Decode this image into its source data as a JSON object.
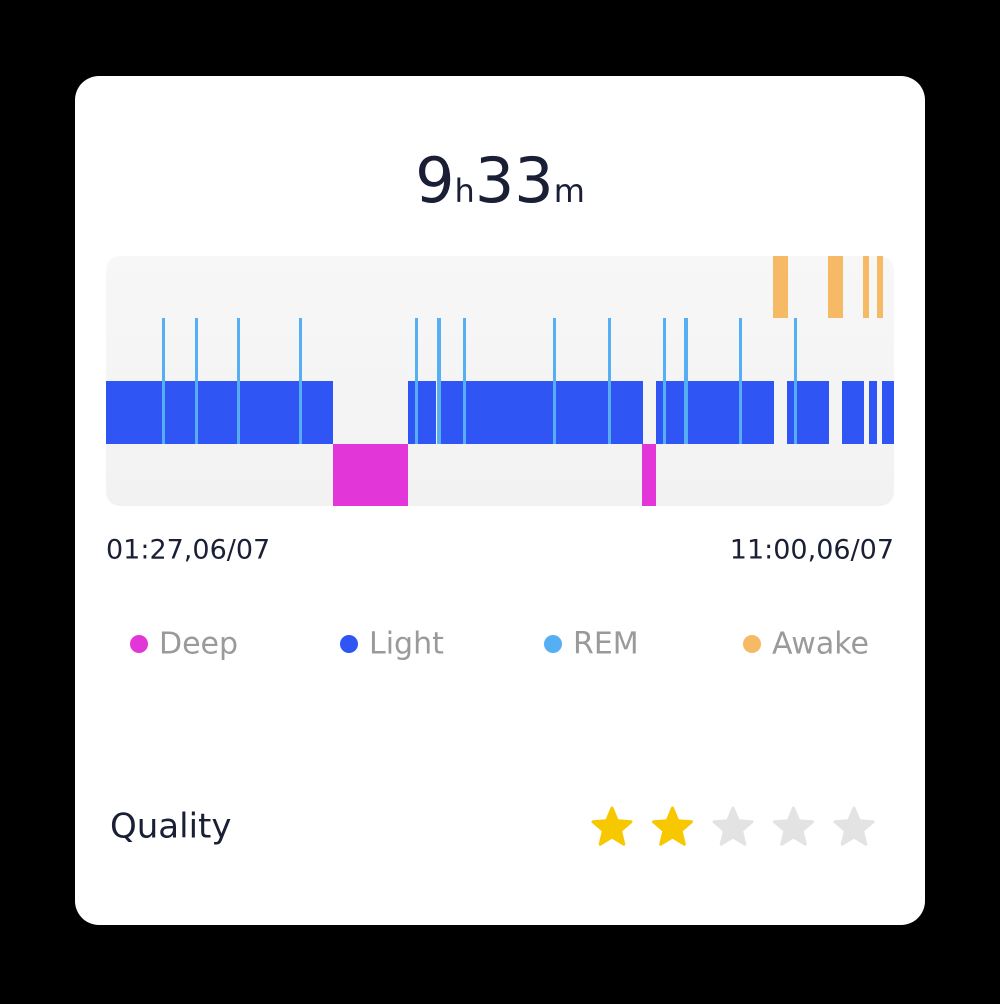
{
  "duration": {
    "hours": 9,
    "hours_unit": "h",
    "minutes": 33,
    "minutes_unit": "m"
  },
  "timeline": {
    "start": "01:27,06/07",
    "end": "11:00,06/07"
  },
  "legend": [
    {
      "label": "Deep",
      "color": "#e336d9"
    },
    {
      "label": "Light",
      "color": "#2f56f5"
    },
    {
      "label": "REM",
      "color": "#56aef3"
    },
    {
      "label": "Awake",
      "color": "#f6b966"
    }
  ],
  "quality": {
    "label": "Quality",
    "rating": 2,
    "max": 5,
    "color": "#f7c800",
    "empty_color": "#e3e3e3"
  }
}
